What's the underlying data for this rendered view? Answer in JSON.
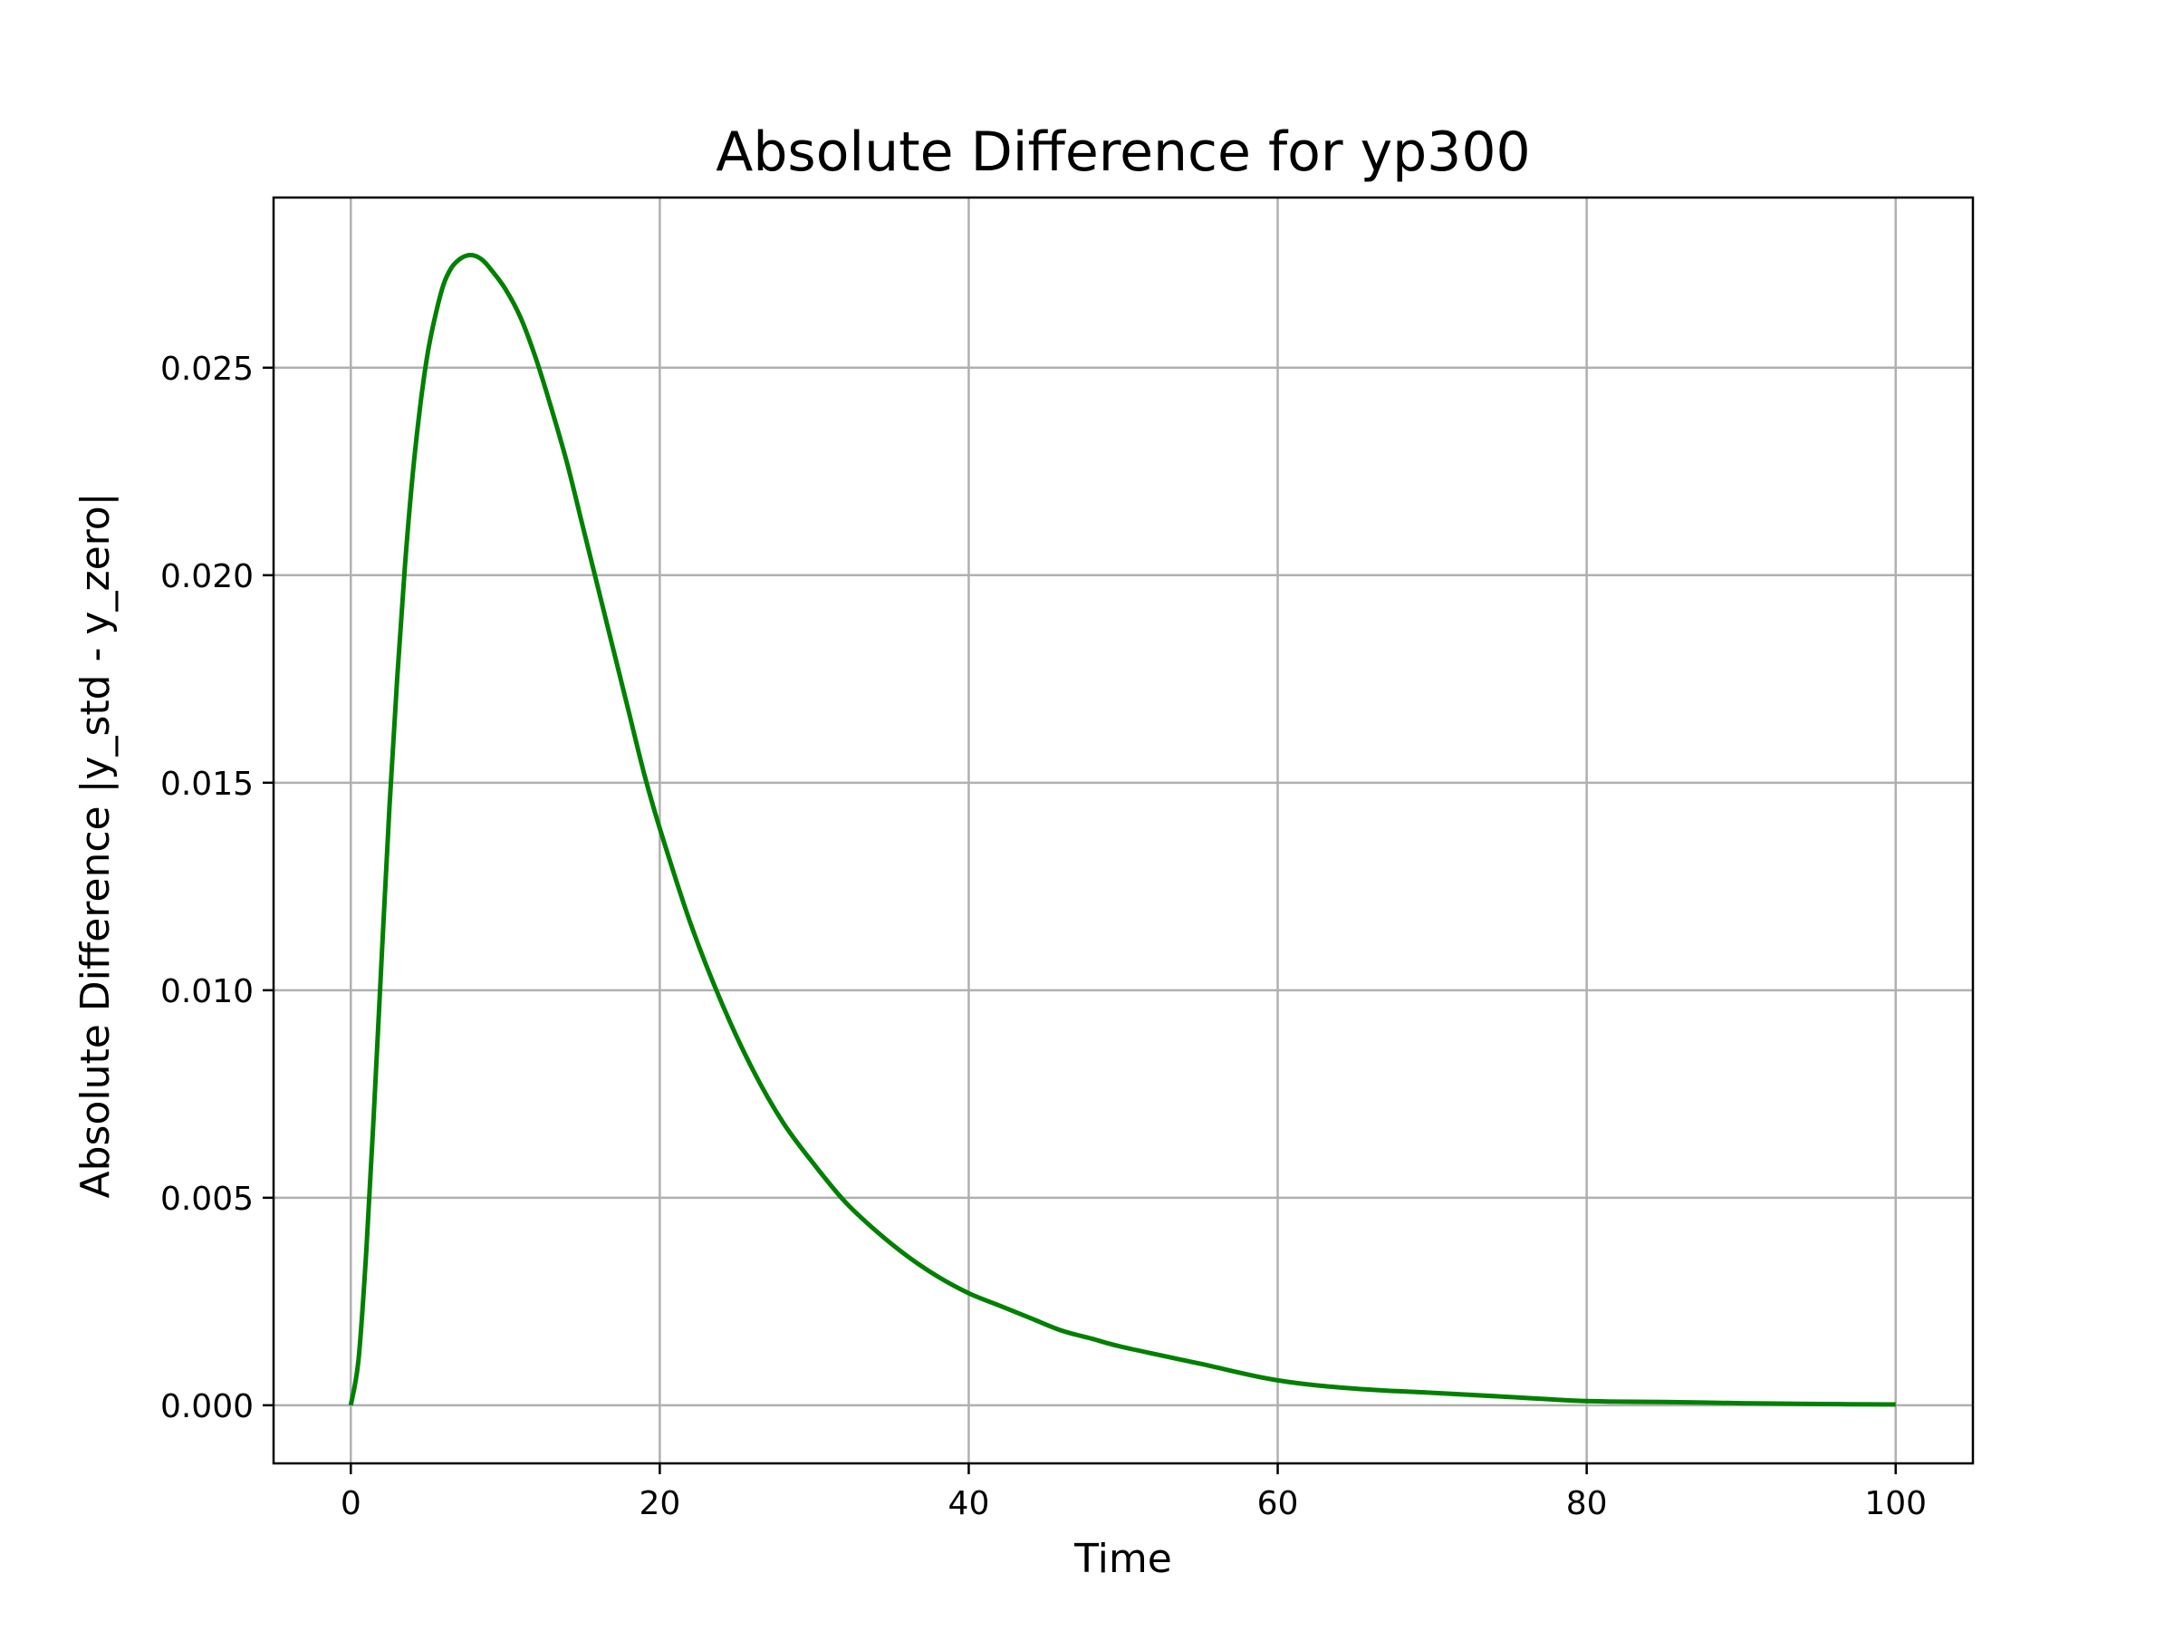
{
  "chart_data": {
    "type": "line",
    "title": "Absolute Difference for yp300",
    "xlabel": "Time",
    "ylabel": "Absolute Difference |y_std - y_zero|",
    "xlim": [
      -5,
      105
    ],
    "ylim": [
      -0.0014,
      0.0291
    ],
    "xticks": [
      0,
      20,
      40,
      60,
      80,
      100
    ],
    "yticks": [
      0.0,
      0.005,
      0.01,
      0.015,
      0.02,
      0.025
    ],
    "xtick_labels": [
      "0",
      "20",
      "40",
      "60",
      "80",
      "100"
    ],
    "ytick_labels": [
      "0.000",
      "0.005",
      "0.010",
      "0.015",
      "0.020",
      "0.025"
    ],
    "grid": true,
    "series": [
      {
        "color": "#008000",
        "x": [
          0,
          0.5,
          1,
          1.5,
          2,
          2.5,
          3,
          3.5,
          4,
          4.5,
          5,
          5.5,
          6,
          6.5,
          7,
          7.5,
          8,
          8.5,
          9,
          10,
          11,
          12,
          13,
          14,
          15,
          16,
          17,
          18,
          19,
          20,
          22,
          24,
          26,
          28,
          30,
          32,
          34,
          36,
          38,
          40,
          42,
          44,
          46,
          48,
          50,
          55,
          60,
          65,
          70,
          75,
          80,
          85,
          90,
          95,
          100
        ],
        "y": [
          0.0,
          0.0011,
          0.0037,
          0.0071,
          0.0108,
          0.0144,
          0.0175,
          0.0202,
          0.0224,
          0.0241,
          0.0254,
          0.0263,
          0.027,
          0.0274,
          0.0276,
          0.0277,
          0.0277,
          0.0276,
          0.0274,
          0.0269,
          0.0262,
          0.0252,
          0.024,
          0.0227,
          0.0212,
          0.0197,
          0.0182,
          0.0167,
          0.0152,
          0.0139,
          0.0116,
          0.0097,
          0.0081,
          0.0068,
          0.0058,
          0.0049,
          0.0042,
          0.0036,
          0.0031,
          0.0027,
          0.0024,
          0.0021,
          0.0018,
          0.0016,
          0.0014,
          0.001,
          0.0006,
          0.0004,
          0.0003,
          0.0002,
          0.0001,
          8e-05,
          5e-05,
          3e-05,
          2e-05
        ]
      }
    ]
  }
}
